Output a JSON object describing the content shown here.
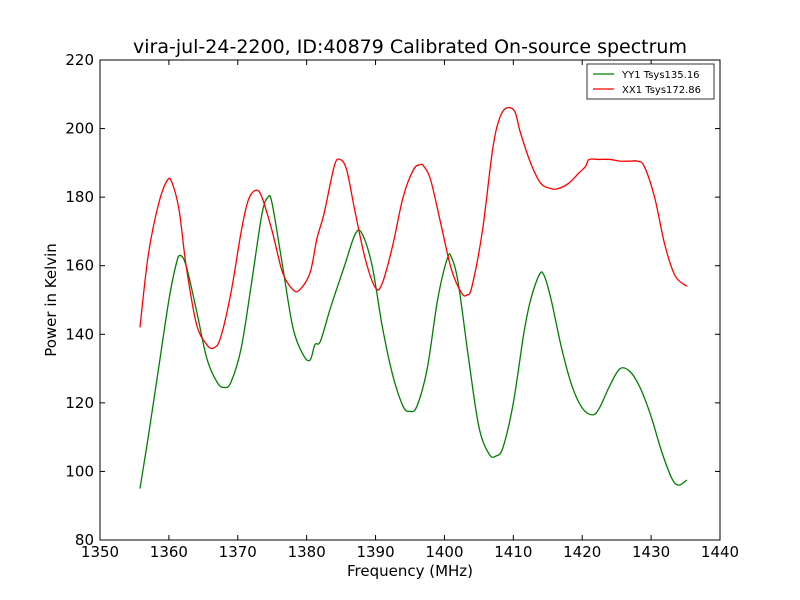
{
  "chart_data": {
    "type": "line",
    "title": "vira-jul-24-2200, ID:40879 Calibrated On-source spectrum",
    "xlabel": "Frequency (MHz)",
    "ylabel": "Power in Kelvin",
    "xlim": [
      1350,
      1440
    ],
    "ylim": [
      80,
      220
    ],
    "xticks": [
      1350,
      1360,
      1370,
      1380,
      1390,
      1400,
      1410,
      1420,
      1430,
      1440
    ],
    "yticks": [
      80,
      100,
      120,
      140,
      160,
      180,
      200,
      220
    ],
    "xtick_labels": [
      "1350",
      "1360",
      "1370",
      "1380",
      "1390",
      "1400",
      "1410",
      "1420",
      "1430",
      "1440"
    ],
    "ytick_labels": [
      "80",
      "100",
      "120",
      "140",
      "160",
      "180",
      "200",
      "220"
    ],
    "grid": false,
    "legend_position": "top-right",
    "series": [
      {
        "name": "YY1 Tsys135.16",
        "color": "#008000",
        "x": [
          1355.8,
          1357.0,
          1358.5,
          1360.0,
          1361.0,
          1361.6,
          1362.5,
          1364.0,
          1365.5,
          1367.0,
          1368.0,
          1369.0,
          1370.5,
          1372.0,
          1373.5,
          1374.4,
          1375.0,
          1376.5,
          1378.0,
          1379.5,
          1380.5,
          1381.2,
          1382.0,
          1383.5,
          1385.5,
          1387.0,
          1388.0,
          1389.5,
          1391.0,
          1392.5,
          1394.0,
          1395.0,
          1396.0,
          1397.5,
          1399.0,
          1400.4,
          1401.0,
          1402.0,
          1403.5,
          1405.0,
          1406.5,
          1407.5,
          1408.5,
          1410.0,
          1411.5,
          1412.5,
          1413.8,
          1414.5,
          1415.5,
          1417.0,
          1418.5,
          1420.0,
          1421.5,
          1422.5,
          1424.0,
          1425.5,
          1427.0,
          1428.5,
          1430.0,
          1431.5,
          1433.0,
          1434.0,
          1435.2
        ],
        "values": [
          95,
          110,
          130,
          150,
          160,
          163,
          160,
          147,
          133,
          126,
          124.5,
          126,
          136,
          155,
          175,
          180,
          178,
          160,
          142,
          134,
          132.5,
          137,
          138,
          148,
          160,
          169,
          169.5,
          160,
          142,
          128,
          119,
          117.5,
          119,
          130,
          150,
          162,
          162.5,
          155,
          133,
          113,
          105,
          104.5,
          107,
          120,
          140,
          150,
          157.5,
          157,
          150,
          136,
          125,
          118.5,
          116.5,
          118.5,
          125,
          130,
          129,
          124,
          116,
          106,
          98,
          96,
          97.5
        ]
      },
      {
        "name": "XX1 Tsys172.86",
        "color": "#ff0000",
        "x": [
          1355.8,
          1357.0,
          1358.5,
          1359.8,
          1360.5,
          1361.5,
          1362.5,
          1364.0,
          1365.5,
          1366.5,
          1367.5,
          1369.0,
          1370.5,
          1371.5,
          1372.6,
          1373.5,
          1375.0,
          1376.5,
          1378.0,
          1379.0,
          1380.5,
          1381.5,
          1382.5,
          1384.0,
          1384.8,
          1385.8,
          1387.0,
          1388.5,
          1390.0,
          1391.0,
          1392.5,
          1394.0,
          1395.5,
          1396.5,
          1397.0,
          1398.0,
          1399.5,
          1401.0,
          1402.5,
          1403.3,
          1404.0,
          1405.5,
          1407.0,
          1408.0,
          1409.0,
          1410.2,
          1411.0,
          1412.5,
          1414.0,
          1415.5,
          1416.5,
          1418.0,
          1419.5,
          1420.5,
          1421.0,
          1422.5,
          1424.0,
          1425.5,
          1427.0,
          1428.0,
          1429.0,
          1430.5,
          1432.0,
          1433.5,
          1435.2
        ],
        "values": [
          142,
          163,
          178,
          185,
          184,
          176,
          160,
          143,
          137,
          136,
          139,
          152,
          170,
          179,
          182,
          180,
          170,
          158,
          153,
          153,
          158,
          168,
          175,
          189,
          191,
          188,
          176,
          162,
          153.5,
          155,
          166,
          180,
          188,
          189.5,
          189,
          185,
          172,
          159,
          152,
          151.5,
          154,
          170,
          194,
          203,
          206,
          205,
          199,
          190,
          184,
          182.5,
          182.5,
          184,
          187,
          189,
          191,
          191,
          191,
          190.5,
          190.5,
          190.5,
          189,
          180,
          166,
          157,
          154
        ]
      }
    ]
  }
}
